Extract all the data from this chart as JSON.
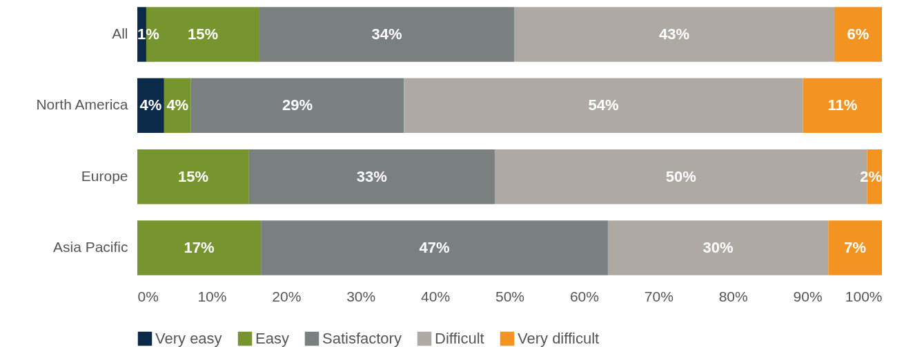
{
  "chart_data": {
    "type": "bar",
    "orientation": "horizontal",
    "stacked": true,
    "categories": [
      "All",
      "North America",
      "Europe",
      "Asia Pacific"
    ],
    "series": [
      {
        "name": "Very easy",
        "color": "#0b2a4a",
        "values": [
          1.2,
          3.6,
          null,
          null
        ],
        "value_labels": [
          "1%",
          "4%",
          null,
          null
        ]
      },
      {
        "name": "Easy",
        "color": "#76952e",
        "values": [
          15.2,
          3.6,
          15,
          16.6
        ],
        "value_labels": [
          "15%",
          "4%",
          "15%",
          "17%"
        ]
      },
      {
        "name": "Satisfactory",
        "color": "#7a7f7f",
        "values": [
          34.2,
          28.6,
          33,
          46.6
        ],
        "value_labels": [
          "34%",
          "29%",
          "33%",
          "47%"
        ]
      },
      {
        "name": "Difficult",
        "color": "#aea9a2",
        "values": [
          43.0,
          53.6,
          50,
          29.6
        ],
        "value_labels": [
          "43%",
          "54%",
          "50%",
          "30%"
        ]
      },
      {
        "name": "Very difficult",
        "color": "#f39322",
        "values": [
          6.4,
          10.6,
          2,
          7.2
        ],
        "value_labels": [
          "6%",
          "11%",
          "2%",
          "7%"
        ]
      }
    ],
    "xlim": [
      0,
      100
    ],
    "xticks": [
      {
        "value": 0,
        "label": "0%"
      },
      {
        "value": 10,
        "label": "10%"
      },
      {
        "value": 20,
        "label": "20%"
      },
      {
        "value": 30,
        "label": "30%"
      },
      {
        "value": 40,
        "label": "40%"
      },
      {
        "value": 50,
        "label": "50%"
      },
      {
        "value": 60,
        "label": "60%"
      },
      {
        "value": 70,
        "label": "70%"
      },
      {
        "value": 80,
        "label": "80%"
      },
      {
        "value": 90,
        "label": "90%"
      },
      {
        "value": 100,
        "label": "100%"
      }
    ],
    "grid": false,
    "legend": "bottom"
  }
}
